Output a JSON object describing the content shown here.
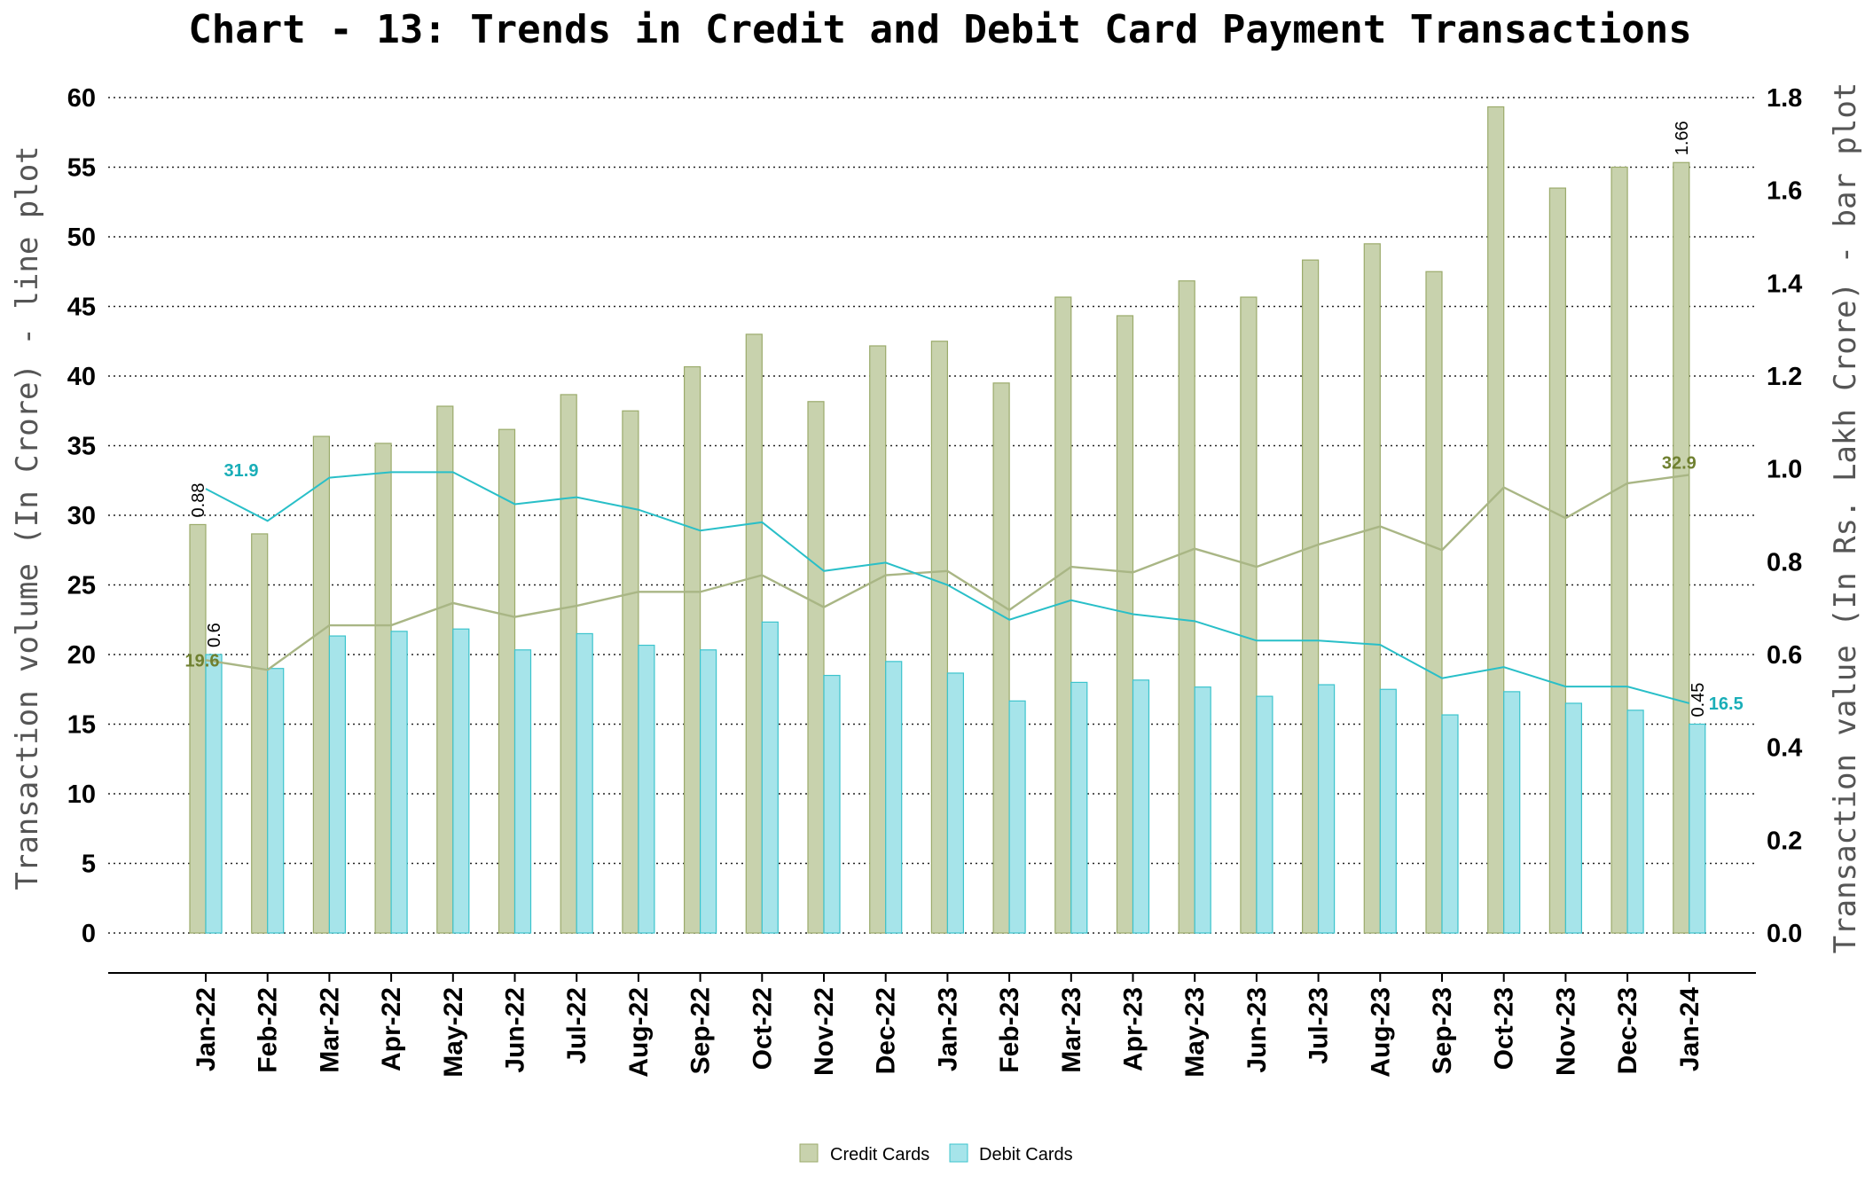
{
  "chart_data": {
    "type": "bar",
    "title": "Chart - 13: Trends in Credit and Debit Card Payment Transactions",
    "ylabel_left": "Transaction volume (In Crore) - line plot",
    "ylabel_right": "Transaction value (In Rs. Lakh Crore) - bar plot",
    "xlabel": "",
    "ylim_left": [
      0,
      60
    ],
    "yticks_left": [
      "0",
      "5",
      "10",
      "15",
      "20",
      "25",
      "30",
      "35",
      "40",
      "45",
      "50",
      "55",
      "60"
    ],
    "ylim_right": [
      0,
      1.8
    ],
    "yticks_right": [
      "0.0",
      "0.2",
      "0.4",
      "0.6",
      "0.8",
      "1.0",
      "1.2",
      "1.4",
      "1.6",
      "1.8"
    ],
    "grid": "horizontal dotted",
    "legend_position": "bottom",
    "categories": [
      "Jan-22",
      "Feb-22",
      "Mar-22",
      "Apr-22",
      "May-22",
      "Jun-22",
      "Jul-22",
      "Aug-22",
      "Sep-22",
      "Oct-22",
      "Nov-22",
      "Dec-22",
      "Jan-23",
      "Feb-23",
      "Mar-23",
      "Apr-23",
      "May-23",
      "Jun-23",
      "Jul-23",
      "Aug-23",
      "Sep-23",
      "Oct-23",
      "Nov-23",
      "Dec-23",
      "Jan-24"
    ],
    "bar_series": [
      {
        "name": "Credit Cards",
        "axis": "right",
        "color": "#c8d2ad",
        "stroke": "#9bab6b",
        "values": [
          0.88,
          0.86,
          1.07,
          1.055,
          1.135,
          1.085,
          1.16,
          1.125,
          1.22,
          1.29,
          1.145,
          1.265,
          1.275,
          1.185,
          1.37,
          1.33,
          1.405,
          1.37,
          1.45,
          1.485,
          1.425,
          1.78,
          1.605,
          1.65,
          1.66
        ],
        "labels": {
          "0": "0.88",
          "24": "1.66"
        }
      },
      {
        "name": "Debit Cards",
        "axis": "right",
        "color": "#a6e4ea",
        "stroke": "#3cc4cd",
        "values": [
          0.6,
          0.57,
          0.64,
          0.65,
          0.655,
          0.61,
          0.645,
          0.62,
          0.61,
          0.67,
          0.555,
          0.585,
          0.56,
          0.5,
          0.54,
          0.545,
          0.53,
          0.51,
          0.535,
          0.525,
          0.47,
          0.52,
          0.495,
          0.48,
          0.45
        ],
        "labels": {
          "0": "0.6",
          "24": "0.45"
        }
      }
    ],
    "line_series": [
      {
        "axis": "left",
        "color": "#a9b685",
        "label_color": "#6f8030",
        "values": [
          19.6,
          18.9,
          22.1,
          22.1,
          23.7,
          22.7,
          23.5,
          24.5,
          24.5,
          25.7,
          23.4,
          25.7,
          26.0,
          23.2,
          26.3,
          25.9,
          27.6,
          26.3,
          27.9,
          29.2,
          27.5,
          32.0,
          29.8,
          32.3,
          32.9
        ],
        "labels": {
          "0": "19.6",
          "24": "32.9"
        }
      },
      {
        "axis": "left",
        "color": "#29bfc8",
        "label_color": "#1aaeb8",
        "values": [
          31.9,
          29.6,
          32.7,
          33.1,
          33.1,
          30.8,
          31.3,
          30.4,
          28.9,
          29.5,
          26.0,
          26.6,
          25.0,
          22.5,
          23.9,
          22.9,
          22.4,
          21.0,
          21.0,
          20.7,
          18.3,
          19.1,
          17.7,
          17.7,
          16.5
        ],
        "labels": {
          "0": "31.9",
          "24": "16.5"
        }
      }
    ]
  }
}
